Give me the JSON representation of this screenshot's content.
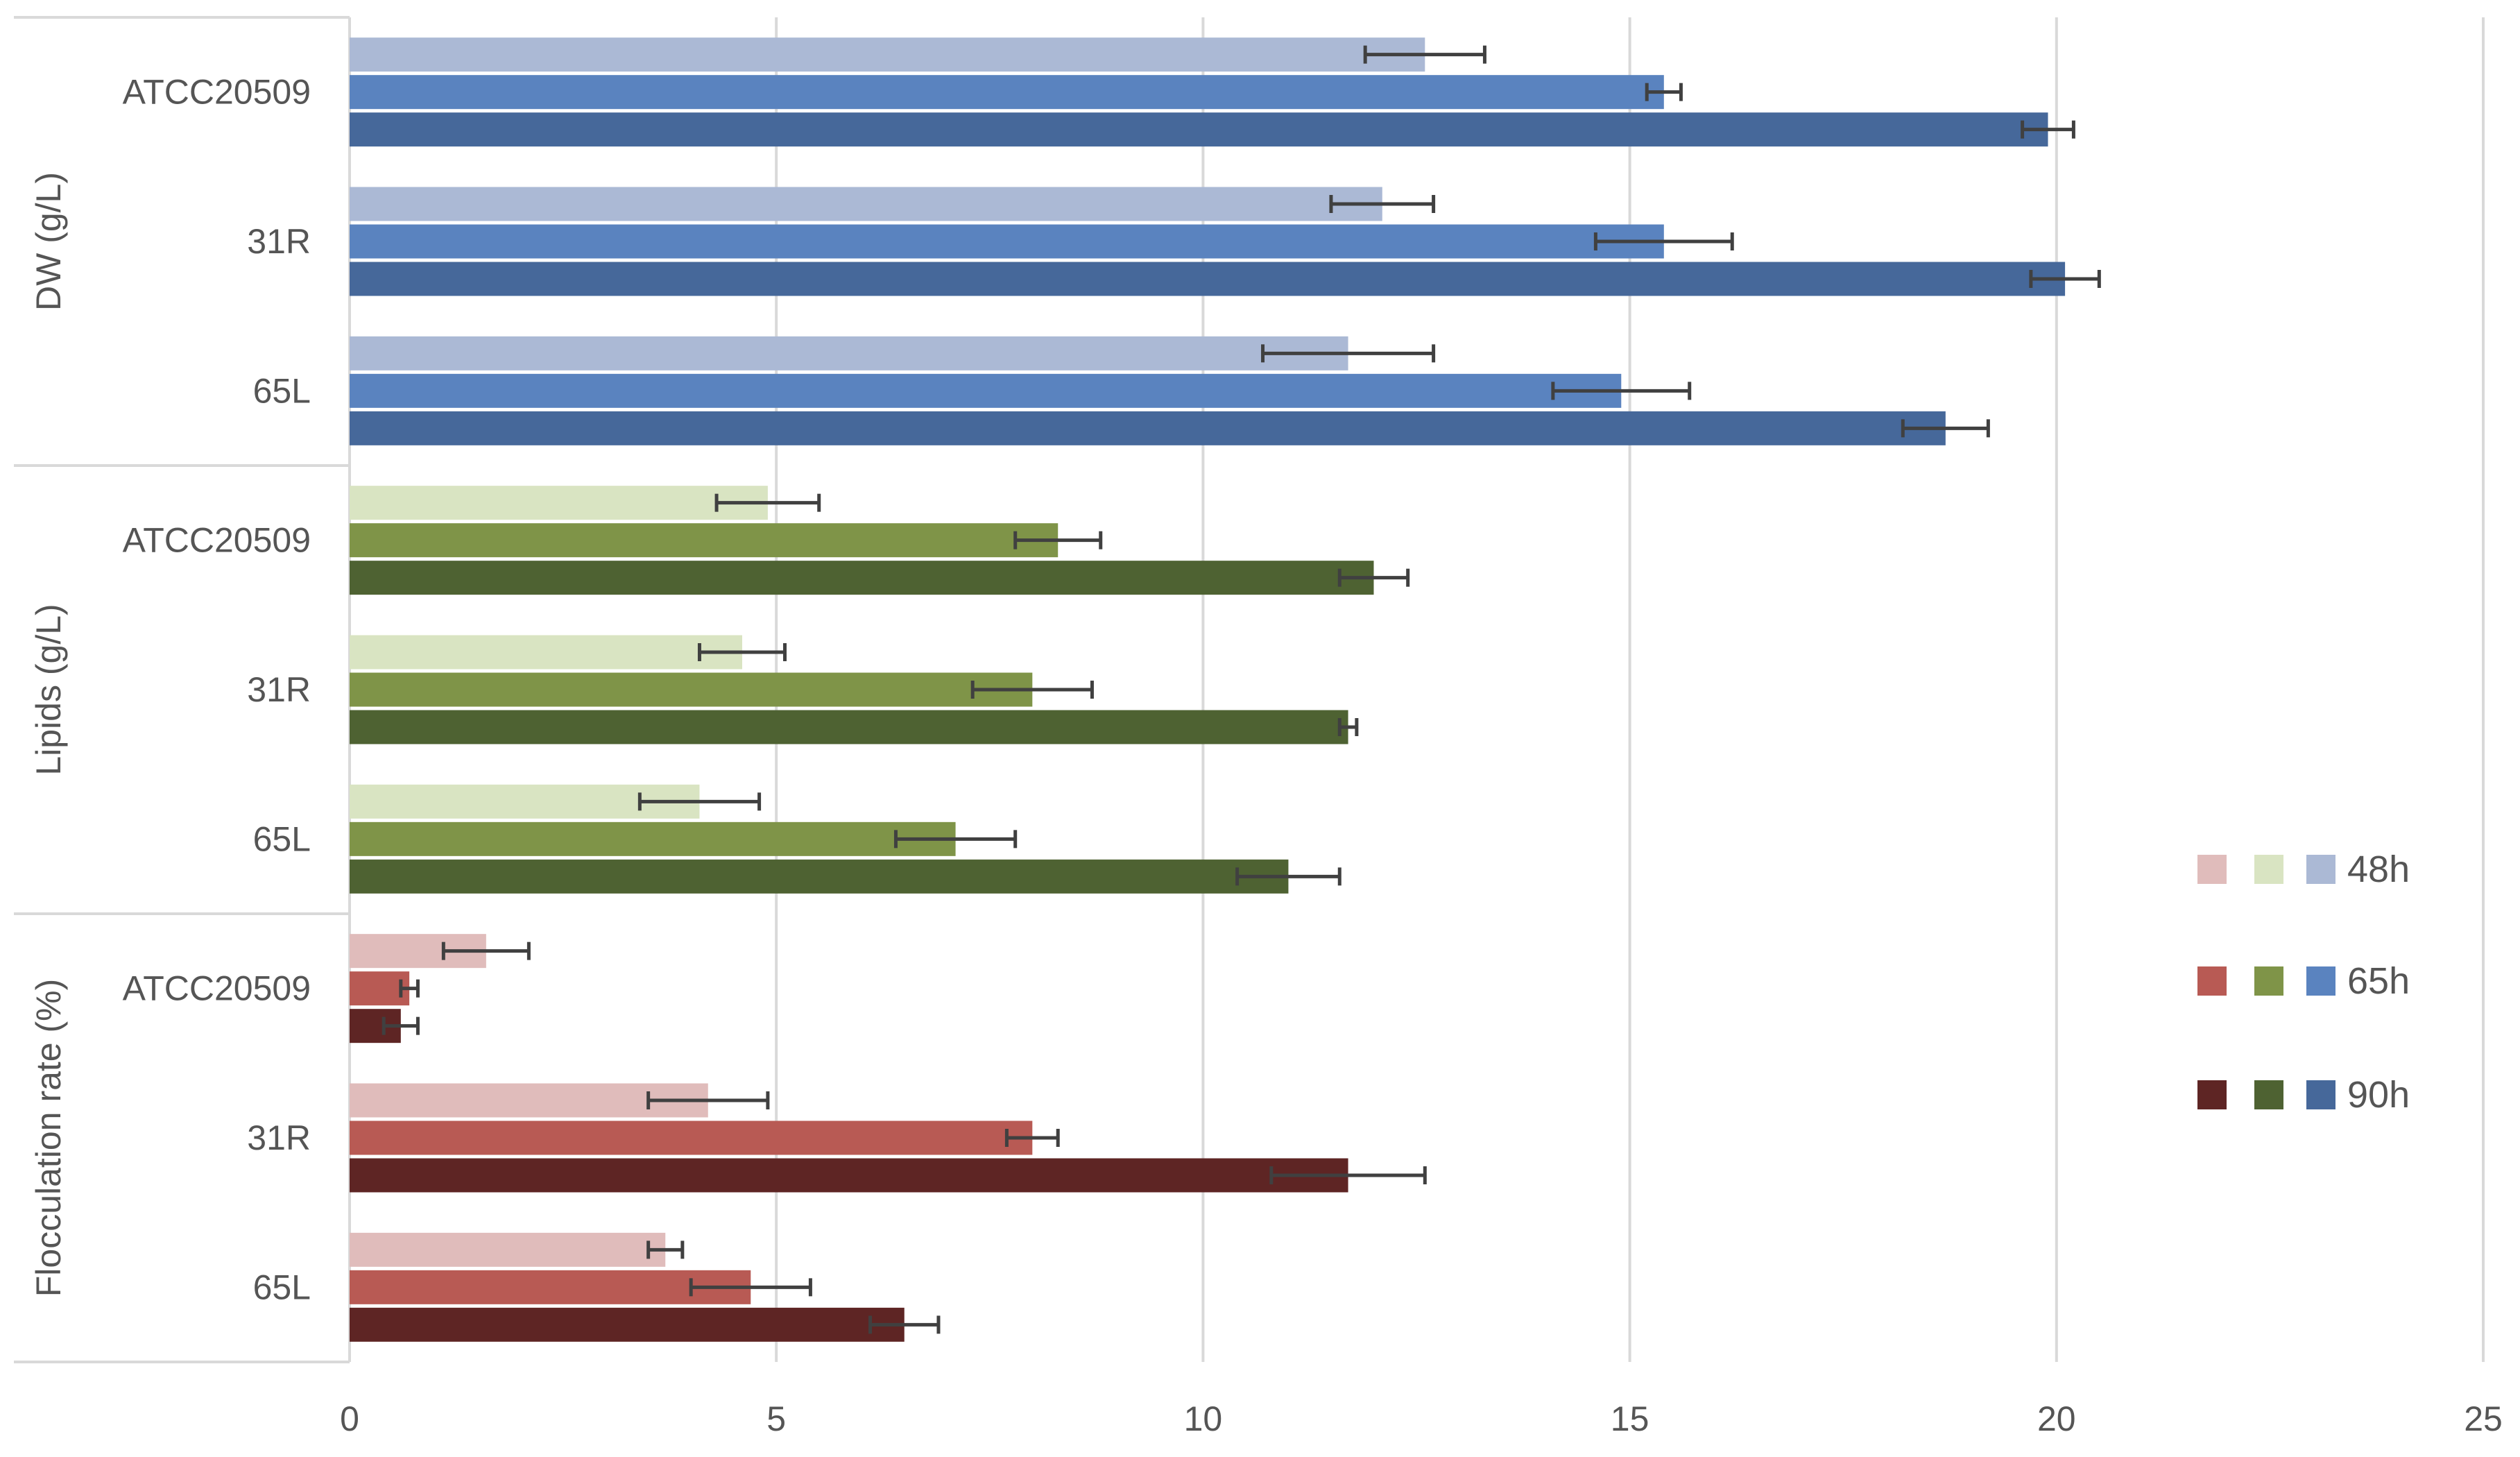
{
  "chart_data": {
    "type": "bar",
    "orientation": "horizontal",
    "title": "",
    "xlabel": "",
    "ylabel": "",
    "xlim": [
      0,
      25
    ],
    "x_ticks": [
      0,
      5,
      10,
      15,
      20,
      25
    ],
    "grid": true,
    "legend_position": "right",
    "legend": {
      "labels": [
        "48h",
        "65h",
        "90h"
      ]
    },
    "groups": [
      {
        "label": "DW (g/L)",
        "colors": [
          "#abb9d5",
          "#5a83bf",
          "#46689a"
        ],
        "categories": [
          {
            "label": "ATCC20509",
            "values": [
              12.6,
              15.4,
              19.9
            ],
            "errors": [
              0.7,
              0.2,
              0.3
            ]
          },
          {
            "label": "31R",
            "values": [
              12.1,
              15.4,
              20.1
            ],
            "errors": [
              0.6,
              0.8,
              0.4
            ]
          },
          {
            "label": "65L",
            "values": [
              11.7,
              14.9,
              18.7
            ],
            "errors": [
              1.0,
              0.8,
              0.5
            ]
          }
        ]
      },
      {
        "label": "Lipids (g/L)",
        "colors": [
          "#d9e4c2",
          "#7f9448",
          "#4e6232"
        ],
        "categories": [
          {
            "label": "ATCC20509",
            "values": [
              4.9,
              8.3,
              12.0
            ],
            "errors": [
              0.6,
              0.5,
              0.4
            ]
          },
          {
            "label": "31R",
            "values": [
              4.6,
              8.0,
              11.7
            ],
            "errors": [
              0.5,
              0.7,
              0.1
            ]
          },
          {
            "label": "65L",
            "values": [
              4.1,
              7.1,
              11.0
            ],
            "errors": [
              0.7,
              0.7,
              0.6
            ]
          }
        ]
      },
      {
        "label": "Flocculation rate (%)",
        "colors": [
          "#e0bcbb",
          "#b85a54",
          "#5e2524"
        ],
        "categories": [
          {
            "label": "ATCC20509",
            "values": [
              1.6,
              0.7,
              0.6
            ],
            "errors": [
              0.5,
              0.1,
              0.2
            ]
          },
          {
            "label": "31R",
            "values": [
              4.2,
              8.0,
              11.7
            ],
            "errors": [
              0.7,
              0.3,
              0.9
            ]
          },
          {
            "label": "65L",
            "values": [
              3.7,
              4.7,
              6.5
            ],
            "errors": [
              0.2,
              0.7,
              0.4
            ]
          }
        ]
      }
    ]
  }
}
